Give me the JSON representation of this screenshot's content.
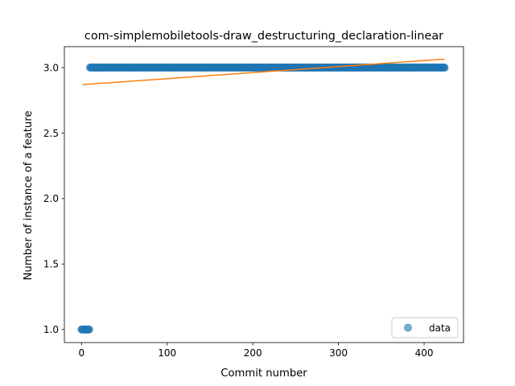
{
  "chart_data": {
    "type": "scatter",
    "title": "com-simplemobiletools-draw_destructuring_declaration-linear",
    "xlabel": "Commit number",
    "ylabel": "Number of instance of a feature",
    "xlim": [
      -20,
      446
    ],
    "ylim": [
      0.9,
      3.16
    ],
    "xticks": [
      0,
      100,
      200,
      300,
      400
    ],
    "yticks": [
      1.0,
      1.5,
      2.0,
      2.5,
      3.0
    ],
    "xtick_labels": [
      "0",
      "100",
      "200",
      "300",
      "400"
    ],
    "ytick_labels": [
      "1.0",
      "1.5",
      "2.0",
      "2.5",
      "3.0"
    ],
    "grid": false,
    "legend_position": "lower-right",
    "series": [
      {
        "name": "data",
        "kind": "scatter",
        "color": "#1f77b4",
        "segments": [
          {
            "x_start": 0,
            "x_end": 9,
            "y": 1.0
          },
          {
            "x_start": 10,
            "x_end": 424,
            "y": 3.0
          }
        ]
      },
      {
        "kind": "line",
        "color": "#ff7f0e",
        "x": [
          1,
          424
        ],
        "y": [
          2.87,
          3.065
        ]
      }
    ]
  }
}
